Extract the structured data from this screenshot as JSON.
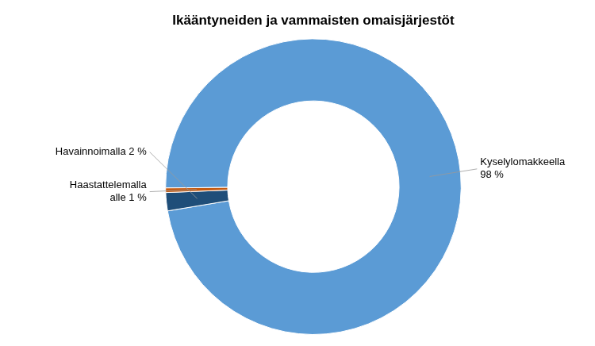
{
  "chart_data": {
    "type": "doughnut",
    "title": "Ikääntyneiden ja vammaisten omaisjärjestöt",
    "values": [
      98,
      2,
      0.5
    ],
    "value_labels": [
      "Kyselylomakkeella\n98 %",
      "Havainnoimalla 2 %",
      "Haastattelemalla\nalle 1 %"
    ],
    "colors": [
      "#5B9BD5",
      "#1F4E79",
      "#C55A11"
    ],
    "data_labels": true
  }
}
